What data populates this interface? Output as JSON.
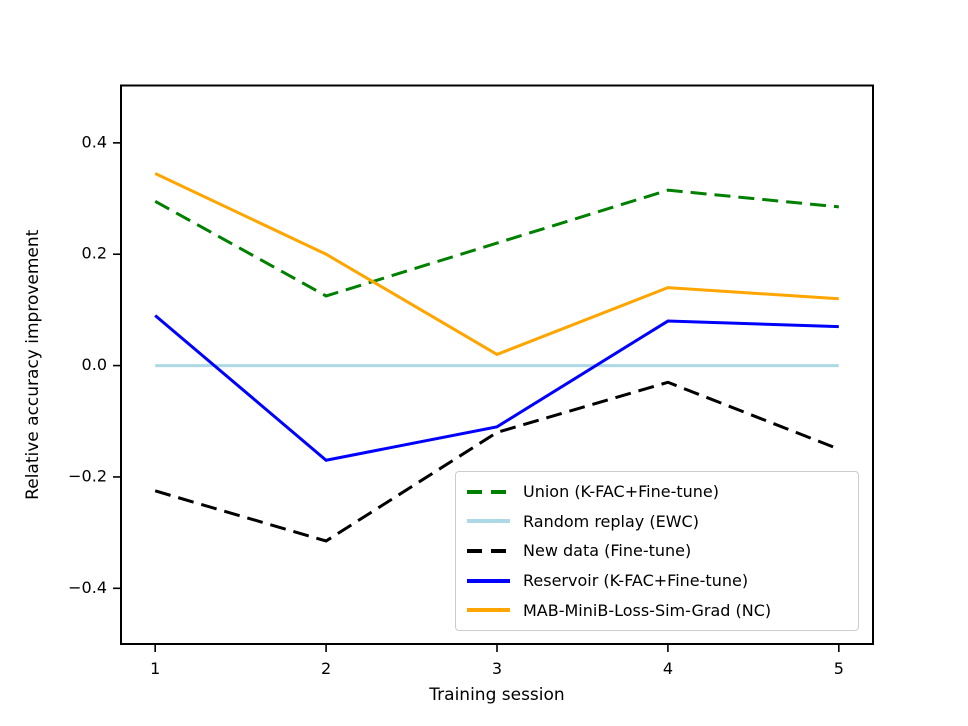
{
  "figure": {
    "background": "#ffffff",
    "text_color": "#000000"
  },
  "chart_data": {
    "type": "line",
    "title": "",
    "xlabel": "Training session",
    "ylabel": "Relative accuracy improvement",
    "x": [
      1,
      2,
      3,
      4,
      5
    ],
    "xlim": [
      0.8,
      5.2
    ],
    "ylim": [
      -0.5,
      0.503
    ],
    "grid": false,
    "legend_position": "lower right",
    "xticks": [
      {
        "value": 1,
        "label": "1"
      },
      {
        "value": 2,
        "label": "2"
      },
      {
        "value": 3,
        "label": "3"
      },
      {
        "value": 4,
        "label": "4"
      },
      {
        "value": 5,
        "label": "5"
      }
    ],
    "yticks": [
      {
        "value": -0.4,
        "label": "−0.4"
      },
      {
        "value": -0.2,
        "label": "−0.2"
      },
      {
        "value": 0.0,
        "label": "0.0"
      },
      {
        "value": 0.2,
        "label": "0.2"
      },
      {
        "value": 0.4,
        "label": "0.4"
      }
    ],
    "series": [
      {
        "name": "Union (K-FAC+Fine-tune)",
        "color": "#008000",
        "style": "dashed",
        "values": [
          0.295,
          0.125,
          0.22,
          0.315,
          0.285
        ]
      },
      {
        "name": "Random replay (EWC)",
        "color": "#ADD8E6",
        "style": "solid",
        "values": [
          0.0,
          0.0,
          0.0,
          0.0,
          0.0
        ]
      },
      {
        "name": "New data (Fine-tune)",
        "color": "#000000",
        "style": "dashed",
        "values": [
          -0.225,
          -0.315,
          -0.12,
          -0.03,
          -0.15
        ]
      },
      {
        "name": "Reservoir (K-FAC+Fine-tune)",
        "color": "#0000FF",
        "style": "solid",
        "values": [
          0.09,
          -0.17,
          -0.11,
          0.08,
          0.07
        ]
      },
      {
        "name": "MAB-MiniB-Loss-Sim-Grad (NC)",
        "color": "#FFA500",
        "style": "solid",
        "values": [
          0.345,
          0.2,
          0.02,
          0.14,
          0.12
        ]
      }
    ]
  }
}
